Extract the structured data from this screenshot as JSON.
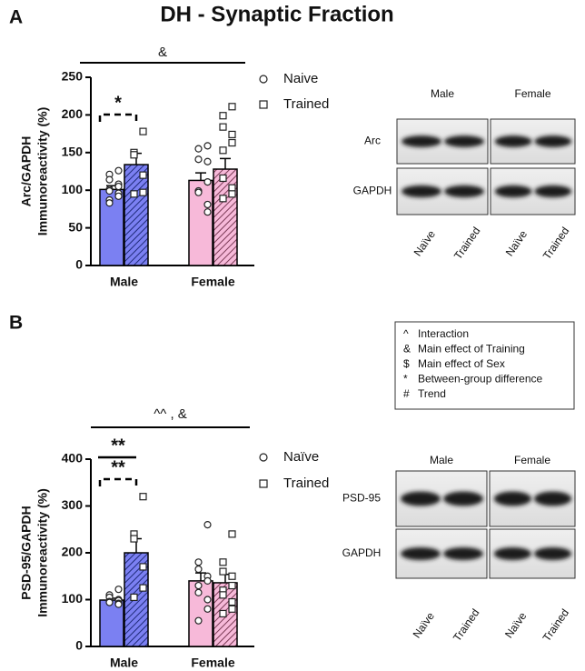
{
  "figure_title": "DH - Synaptic Fraction",
  "chart_data": [
    {
      "panel": "A",
      "type": "bar",
      "ylabel": [
        "Arc/GAPDH",
        "Immunoreactivity (%)"
      ],
      "categories": [
        "Male",
        "Female"
      ],
      "colors": [
        "#7b80f2",
        "#f7b9d9"
      ],
      "series": [
        {
          "name": "Naive",
          "marker": "circle",
          "hatch": false,
          "values": [
            101,
            113
          ],
          "errors": [
            5,
            10
          ],
          "points": [
            [
              126,
              121,
              114,
              108,
              105,
              101,
              99,
              96,
              92,
              87,
              83
            ],
            [
              159,
              155,
              141,
              138,
              111,
              99,
              97,
              81,
              71
            ]
          ]
        },
        {
          "name": "Trained",
          "marker": "square",
          "hatch": true,
          "values": [
            134,
            128
          ],
          "errors": [
            15,
            14
          ],
          "points": [
            [
              178,
              150,
              147,
              120,
              97,
              95
            ],
            [
              211,
              199,
              184,
              174,
              163,
              153,
              116,
              103,
              95,
              89
            ]
          ]
        }
      ],
      "ylim": [
        0,
        250
      ],
      "yticks": [
        0,
        50,
        100,
        150,
        200,
        250
      ],
      "annotations": {
        "overall": "&",
        "male": [
          {
            "label": "*",
            "line": "dashed"
          }
        ]
      },
      "blot": {
        "columns": [
          "Male",
          "Female"
        ],
        "rows": [
          "Arc",
          "GAPDH"
        ],
        "lanes": [
          "Naïve",
          "Trained",
          "Naïve",
          "Trained"
        ]
      }
    },
    {
      "panel": "B",
      "type": "bar",
      "ylabel": [
        "PSD-95/GAPDH",
        "Immunoreactivity (%)"
      ],
      "categories": [
        "Male",
        "Female"
      ],
      "colors": [
        "#7b80f2",
        "#f7b9d9"
      ],
      "series": [
        {
          "name": "Naïve",
          "marker": "circle",
          "hatch": false,
          "values": [
            99,
            140
          ],
          "errors": [
            4,
            17
          ],
          "points": [
            [
              122,
              110,
              105,
              100,
              98,
              96,
              94,
              92,
              90
            ],
            [
              260,
              180,
              165,
              150,
              140,
              130,
              115,
              100,
              80,
              55
            ]
          ]
        },
        {
          "name": "Trained",
          "marker": "square",
          "hatch": true,
          "values": [
            200,
            136
          ],
          "errors": [
            30,
            18
          ],
          "points": [
            [
              320,
              240,
              230,
              170,
              125,
              105
            ],
            [
              240,
              180,
              160,
              150,
              130,
              120,
              110,
              95,
              80,
              70
            ]
          ]
        }
      ],
      "ylim": [
        0,
        400
      ],
      "yticks": [
        0,
        100,
        200,
        300,
        400
      ],
      "annotations": {
        "overall": "^^ , &",
        "male": [
          {
            "label": "**",
            "line": "solid"
          },
          {
            "label": "**",
            "line": "dashed"
          }
        ]
      },
      "blot": {
        "columns": [
          "Male",
          "Female"
        ],
        "rows": [
          "PSD-95",
          "GAPDH"
        ],
        "lanes": [
          "Naïve",
          "Trained",
          "Naïve",
          "Trained"
        ]
      }
    }
  ],
  "key": [
    {
      "symbol": "^",
      "text": "Interaction"
    },
    {
      "symbol": "&",
      "text": "Main effect of Training"
    },
    {
      "symbol": "$",
      "text": "Main effect of Sex"
    },
    {
      "symbol": "*",
      "text": "Between-group difference"
    },
    {
      "symbol": "#",
      "text": "Trend"
    }
  ]
}
